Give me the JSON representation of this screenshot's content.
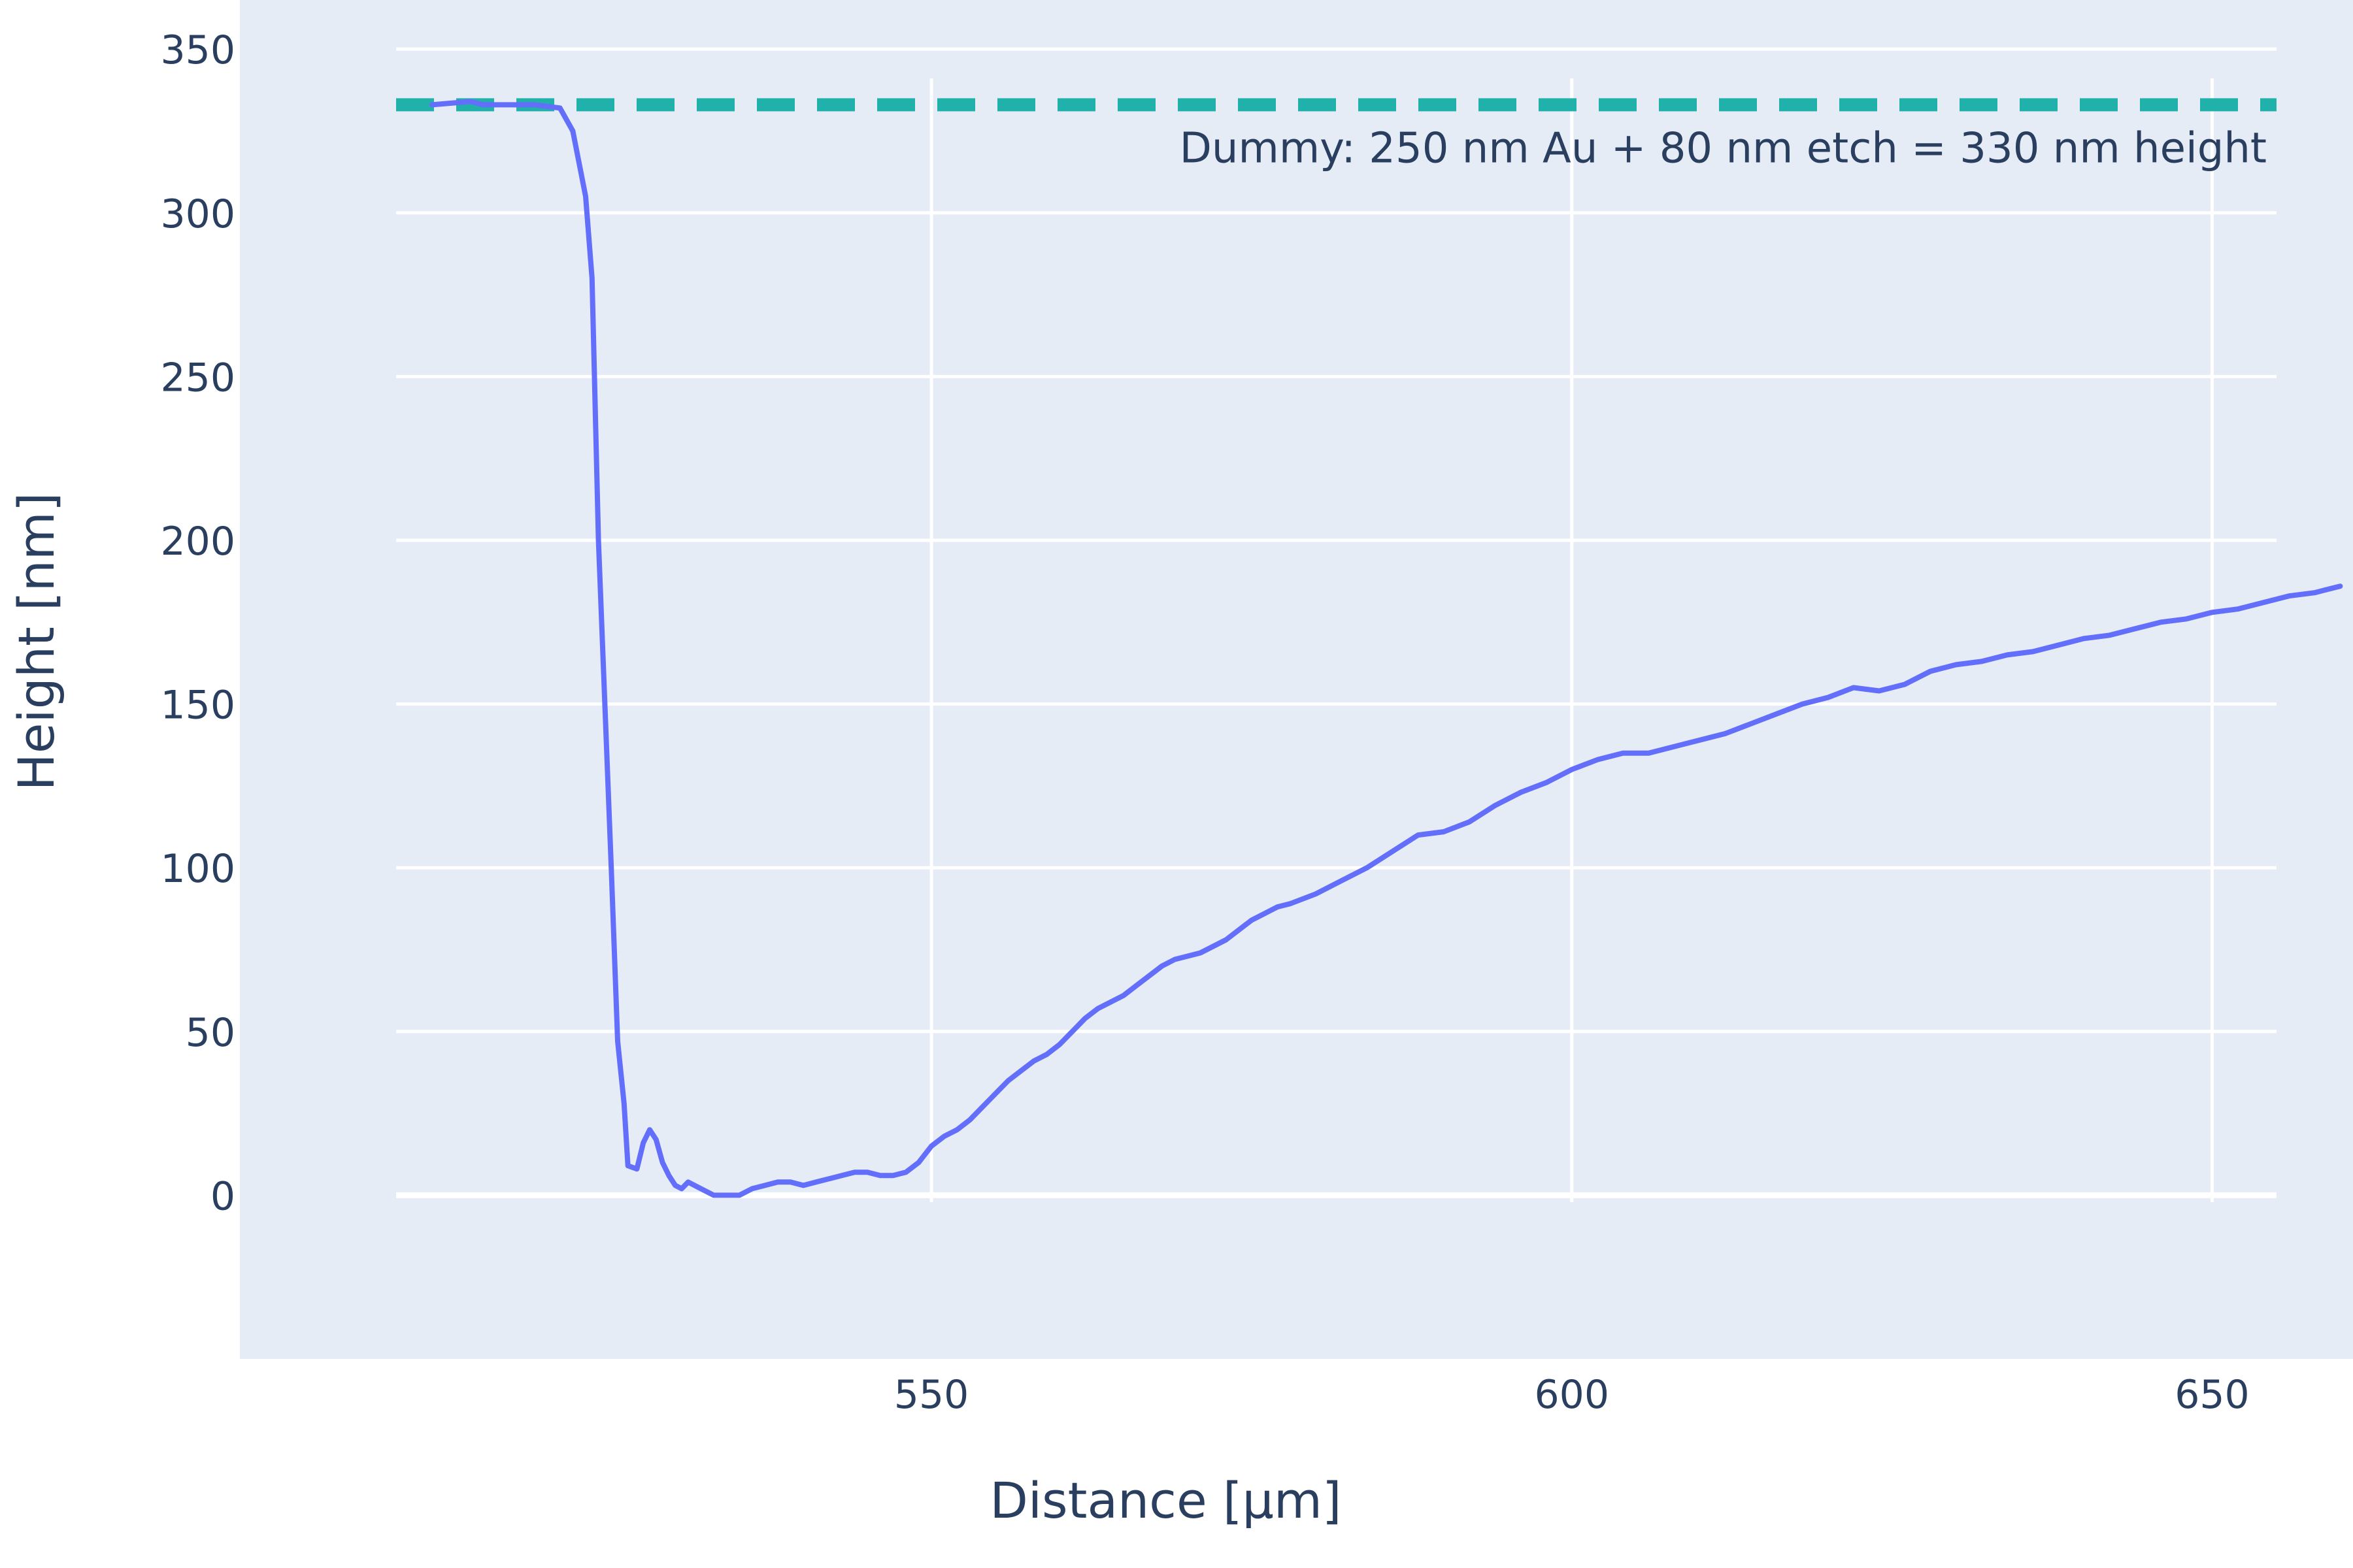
{
  "chart_data": {
    "type": "line",
    "xlabel": "Distance [µm]",
    "ylabel": "Height [nm]",
    "xlim": [
      496,
      661
    ],
    "ylim": [
      -50,
      365
    ],
    "xticks": [
      550,
      600,
      650
    ],
    "yticks": [
      0,
      50,
      100,
      150,
      200,
      250,
      300,
      350
    ],
    "grid": true,
    "colors": {
      "plot_bg": "#e5ecf6",
      "grid": "#ffffff",
      "line": "#636efa",
      "reference": "#20b2aa",
      "text": "#2a3f5f"
    },
    "series": [
      {
        "x": [
          511,
          514,
          515,
          517,
          519,
          521,
          522,
          523,
          523.5,
          524,
          524.5,
          525,
          525.5,
          526,
          526.3,
          527,
          527.5,
          528,
          528.5,
          529,
          529.5,
          530,
          530.5,
          531,
          532,
          533,
          534,
          535,
          536,
          537,
          538,
          539,
          540,
          541,
          542,
          543,
          544,
          545,
          546,
          547,
          548,
          549,
          550,
          551,
          552,
          553,
          554,
          555,
          556,
          557,
          558,
          559,
          560,
          561,
          562,
          563,
          564,
          565,
          566,
          567,
          568,
          569,
          570,
          571,
          572,
          573,
          574,
          575,
          576,
          577,
          578,
          580,
          582,
          584,
          586,
          588,
          590,
          592,
          594,
          596,
          598,
          600,
          602,
          604,
          606,
          608,
          610,
          612,
          614,
          616,
          618,
          620,
          622,
          624,
          626,
          628,
          630,
          632,
          634,
          636,
          638,
          640,
          642,
          644,
          646,
          648,
          650,
          652,
          654,
          656,
          658,
          660
        ],
        "y": [
          333,
          334,
          333,
          333,
          333,
          332,
          325,
          305,
          280,
          200,
          150,
          100,
          47,
          28,
          9,
          8,
          16,
          20,
          17,
          10,
          6,
          3,
          2,
          4,
          2,
          0,
          0,
          0,
          2,
          3,
          4,
          4,
          3,
          4,
          5,
          6,
          7,
          7,
          6,
          6,
          7,
          10,
          15,
          18,
          20,
          23,
          27,
          31,
          35,
          38,
          41,
          43,
          46,
          50,
          54,
          57,
          59,
          61,
          64,
          67,
          70,
          72,
          73,
          74,
          76,
          78,
          81,
          84,
          86,
          88,
          89,
          92,
          96,
          100,
          105,
          110,
          111,
          114,
          119,
          123,
          126,
          130,
          133,
          135,
          135,
          137,
          139,
          141,
          144,
          147,
          150,
          152,
          155,
          154,
          156,
          160,
          162,
          163,
          165,
          166,
          168,
          170,
          171,
          173,
          175,
          176,
          178,
          179,
          181,
          183,
          184,
          186
        ]
      }
    ],
    "reference_line": {
      "y": 333,
      "style": "dashed",
      "label": "Dummy: 250 nm Au + 80 nm etch = 330 nm height"
    }
  }
}
